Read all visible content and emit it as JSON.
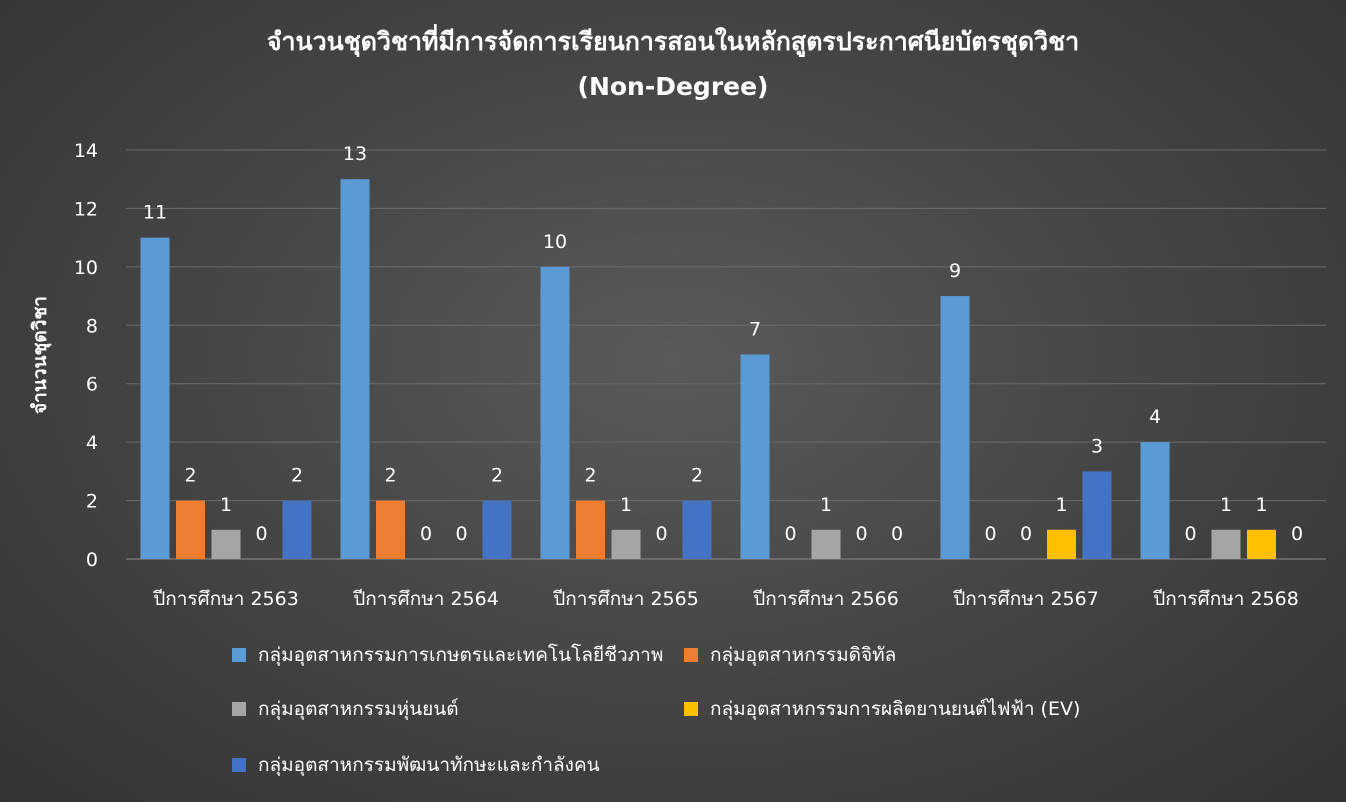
{
  "chart_data": {
    "type": "bar",
    "title": "จำนวนชุดวิชาที่มีการจัดการเรียนการสอนในหลักสูตรประกาศนียบัตรชุดวิชา",
    "subtitle": "(Non-Degree)",
    "ylabel": "จำนวนชุดวิชา",
    "xlabel": "",
    "ylim": [
      0,
      14
    ],
    "yticks": [
      0,
      2,
      4,
      6,
      8,
      10,
      12,
      14
    ],
    "grid": true,
    "legend_position": "bottom",
    "categories": [
      "ปีการศึกษา 2563",
      "ปีการศึกษา 2564",
      "ปีการศึกษา 2565",
      "ปีการศึกษา 2566",
      "ปีการศึกษา 2567",
      "ปีการศึกษา 2568"
    ],
    "series": [
      {
        "name": "กลุ่มอุตสาหกรรมการเกษตรและเทคโนโลยีชีวภาพ",
        "color": "#5b9bd5",
        "values": [
          11,
          13,
          10,
          7,
          9,
          4
        ]
      },
      {
        "name": "กลุ่มอุตสาหกรรมดิจิทัล",
        "color": "#ed7d31",
        "values": [
          2,
          2,
          2,
          0,
          0,
          0
        ]
      },
      {
        "name": "กลุ่มอุตสาหกรรมหุ่นยนต์",
        "color": "#a5a5a5",
        "values": [
          1,
          0,
          1,
          1,
          0,
          1
        ]
      },
      {
        "name": "กลุ่มอุตสาหกรรมการผลิตยานยนต์ไฟฟ้า (EV)",
        "color": "#ffc000",
        "values": [
          0,
          0,
          0,
          0,
          1,
          1
        ]
      },
      {
        "name": "กลุ่มอุตสาหกรรมพัฒนาทักษะและกำลังคน",
        "color": "#4472c4",
        "values": [
          2,
          2,
          2,
          0,
          3,
          0
        ]
      }
    ]
  },
  "colors": {
    "gridline": "#6b6b6b",
    "axis": "#8a8a8a"
  }
}
